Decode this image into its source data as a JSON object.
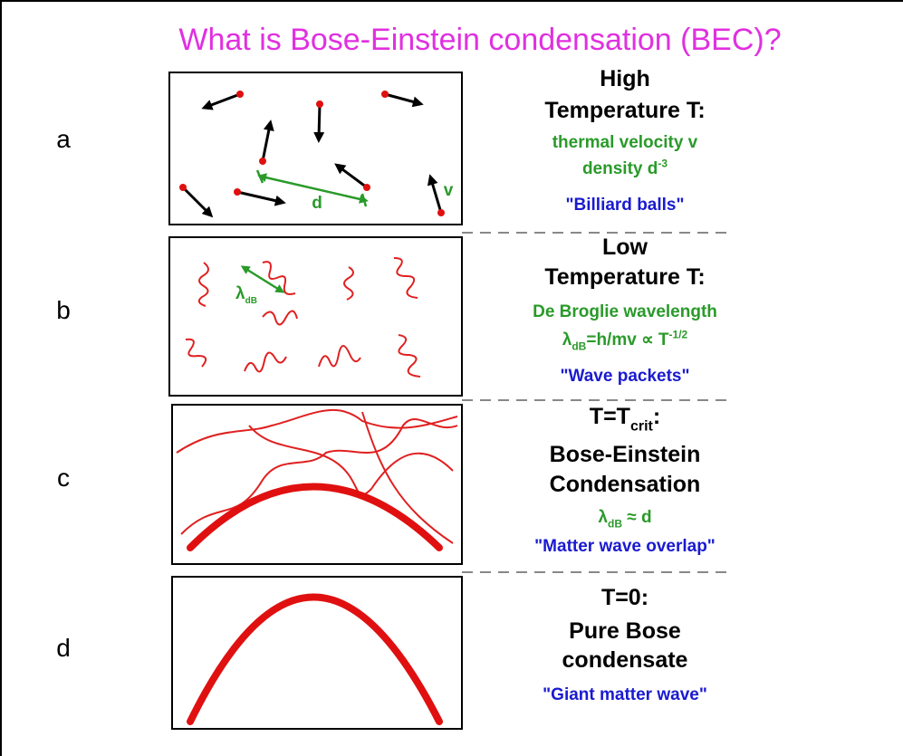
{
  "title": "What is Bose-Einstein condensation (BEC)?",
  "panels": [
    {
      "label": "a",
      "heading": [
        [
          "High"
        ],
        [
          "Temperature T:"
        ]
      ],
      "details": [
        [
          "thermal velocity v"
        ],
        [
          "density d",
          {
            "sup": "-3"
          }
        ]
      ],
      "quote": "\"Billiard balls\"",
      "annotations": [
        [
          "d"
        ],
        [
          "v"
        ]
      ]
    },
    {
      "label": "b",
      "heading": [
        [
          "Low"
        ],
        [
          "Temperature T:"
        ]
      ],
      "details": [
        [
          "De Broglie wavelength"
        ],
        [
          "λ",
          {
            "sub": "dB"
          },
          "=h/mv ∝ T",
          {
            "sup": "-1/2"
          }
        ]
      ],
      "quote": "\"Wave packets\"",
      "annotations": [
        [
          "λ",
          {
            "sub": "dB"
          }
        ]
      ]
    },
    {
      "label": "c",
      "heading": [
        [
          "T=T",
          {
            "sub": "crit"
          },
          ":"
        ],
        [
          "Bose-Einstein"
        ],
        [
          "Condensation"
        ]
      ],
      "details": [
        [
          "λ",
          {
            "sub": "dB"
          },
          " ≈ d"
        ]
      ],
      "quote": "\"Matter wave overlap\""
    },
    {
      "label": "d",
      "heading": [
        [
          "T=0:"
        ],
        [
          "Pure Bose"
        ],
        [
          "condensate"
        ]
      ],
      "quote": "\"Giant matter wave\""
    }
  ]
}
